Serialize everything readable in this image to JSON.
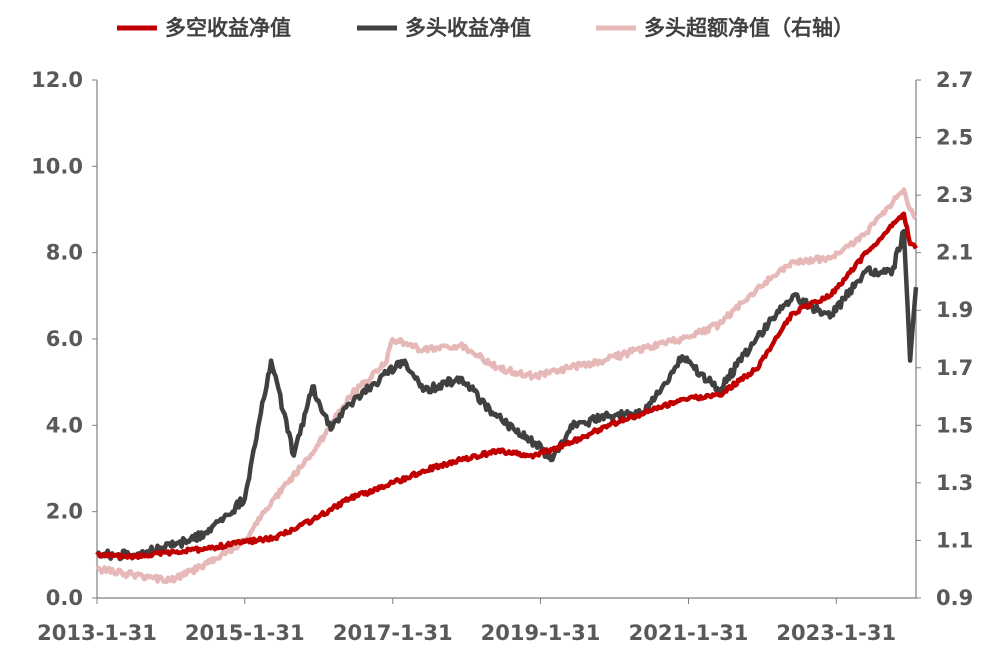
{
  "chart_data": {
    "type": "line",
    "title": "",
    "xlabel": "",
    "ylabel": "",
    "ylabel_right": "",
    "legend": {
      "placement": "top",
      "entries": [
        "多空收益净值",
        "多头收益净值",
        "多头超额净值（右轴）"
      ]
    },
    "x_ticks": [
      "2013-1-31",
      "2015-1-31",
      "2017-1-31",
      "2019-1-31",
      "2021-1-31",
      "2023-1-31"
    ],
    "x_range": [
      "2013-1-31",
      "2024-2-29"
    ],
    "y_left": {
      "ticks": [
        "0.0",
        "2.0",
        "4.0",
        "6.0",
        "8.0",
        "10.0",
        "12.0"
      ],
      "range": [
        0,
        12
      ]
    },
    "y_right": {
      "ticks": [
        "0.9",
        "1.1",
        "1.3",
        "1.5",
        "1.7",
        "1.9",
        "2.1",
        "2.3",
        "2.5",
        "2.7"
      ],
      "range": [
        0.9,
        2.7
      ]
    },
    "grid": false,
    "series": [
      {
        "name": "多空收益净值",
        "axis": "left",
        "color": "#C00000",
        "points": [
          [
            "2013-01-31",
            1.0
          ],
          [
            "2013-07-31",
            0.95
          ],
          [
            "2014-01-31",
            1.05
          ],
          [
            "2014-07-31",
            1.15
          ],
          [
            "2015-01-31",
            1.3
          ],
          [
            "2015-06-30",
            1.4
          ],
          [
            "2015-12-31",
            1.8
          ],
          [
            "2016-06-30",
            2.3
          ],
          [
            "2016-12-31",
            2.6
          ],
          [
            "2017-06-30",
            2.95
          ],
          [
            "2017-12-31",
            3.2
          ],
          [
            "2018-06-30",
            3.4
          ],
          [
            "2018-12-31",
            3.3
          ],
          [
            "2019-06-30",
            3.6
          ],
          [
            "2019-12-31",
            4.0
          ],
          [
            "2020-06-30",
            4.3
          ],
          [
            "2020-12-31",
            4.6
          ],
          [
            "2021-06-30",
            4.7
          ],
          [
            "2021-12-31",
            5.3
          ],
          [
            "2022-06-30",
            6.6
          ],
          [
            "2022-12-31",
            7.0
          ],
          [
            "2023-06-30",
            8.0
          ],
          [
            "2023-12-31",
            8.9
          ],
          [
            "2024-01-31",
            8.2
          ],
          [
            "2024-02-29",
            8.1
          ]
        ]
      },
      {
        "name": "多头收益净值",
        "axis": "left",
        "color": "#404040",
        "points": [
          [
            "2013-01-31",
            1.0
          ],
          [
            "2013-07-31",
            1.0
          ],
          [
            "2014-01-31",
            1.2
          ],
          [
            "2014-07-31",
            1.5
          ],
          [
            "2015-01-31",
            2.3
          ],
          [
            "2015-06-10",
            5.5
          ],
          [
            "2015-09-30",
            3.3
          ],
          [
            "2015-12-31",
            4.9
          ],
          [
            "2016-03-31",
            3.9
          ],
          [
            "2016-06-30",
            4.5
          ],
          [
            "2016-12-31",
            5.2
          ],
          [
            "2017-03-31",
            5.5
          ],
          [
            "2017-06-30",
            4.8
          ],
          [
            "2017-12-31",
            5.1
          ],
          [
            "2018-06-30",
            4.2
          ],
          [
            "2018-12-31",
            3.6
          ],
          [
            "2019-03-31",
            3.2
          ],
          [
            "2019-06-30",
            4.0
          ],
          [
            "2019-12-31",
            4.2
          ],
          [
            "2020-06-30",
            4.3
          ],
          [
            "2020-12-31",
            5.6
          ],
          [
            "2021-06-30",
            4.8
          ],
          [
            "2021-12-31",
            6.0
          ],
          [
            "2022-06-30",
            7.0
          ],
          [
            "2022-12-31",
            6.5
          ],
          [
            "2023-06-30",
            7.6
          ],
          [
            "2023-10-31",
            7.5
          ],
          [
            "2023-12-31",
            8.5
          ],
          [
            "2024-01-31",
            5.5
          ],
          [
            "2024-02-29",
            7.2
          ]
        ]
      },
      {
        "name": "多头超额净值（右轴）",
        "axis": "right",
        "color": "#E6B9B8",
        "points": [
          [
            "2013-01-31",
            1.0
          ],
          [
            "2013-07-31",
            0.98
          ],
          [
            "2014-01-31",
            0.96
          ],
          [
            "2014-07-31",
            1.02
          ],
          [
            "2015-01-31",
            1.1
          ],
          [
            "2015-06-30",
            1.25
          ],
          [
            "2015-12-31",
            1.4
          ],
          [
            "2016-06-30",
            1.6
          ],
          [
            "2016-12-31",
            1.72
          ],
          [
            "2017-01-31",
            1.8
          ],
          [
            "2017-06-30",
            1.76
          ],
          [
            "2017-12-31",
            1.78
          ],
          [
            "2018-06-30",
            1.7
          ],
          [
            "2018-12-31",
            1.67
          ],
          [
            "2019-06-30",
            1.7
          ],
          [
            "2019-12-31",
            1.73
          ],
          [
            "2020-06-30",
            1.77
          ],
          [
            "2020-12-31",
            1.8
          ],
          [
            "2021-06-30",
            1.85
          ],
          [
            "2021-12-31",
            1.97
          ],
          [
            "2022-06-30",
            2.07
          ],
          [
            "2022-12-31",
            2.08
          ],
          [
            "2023-06-30",
            2.17
          ],
          [
            "2023-12-31",
            2.32
          ],
          [
            "2024-01-31",
            2.25
          ],
          [
            "2024-02-29",
            2.22
          ]
        ]
      }
    ]
  }
}
